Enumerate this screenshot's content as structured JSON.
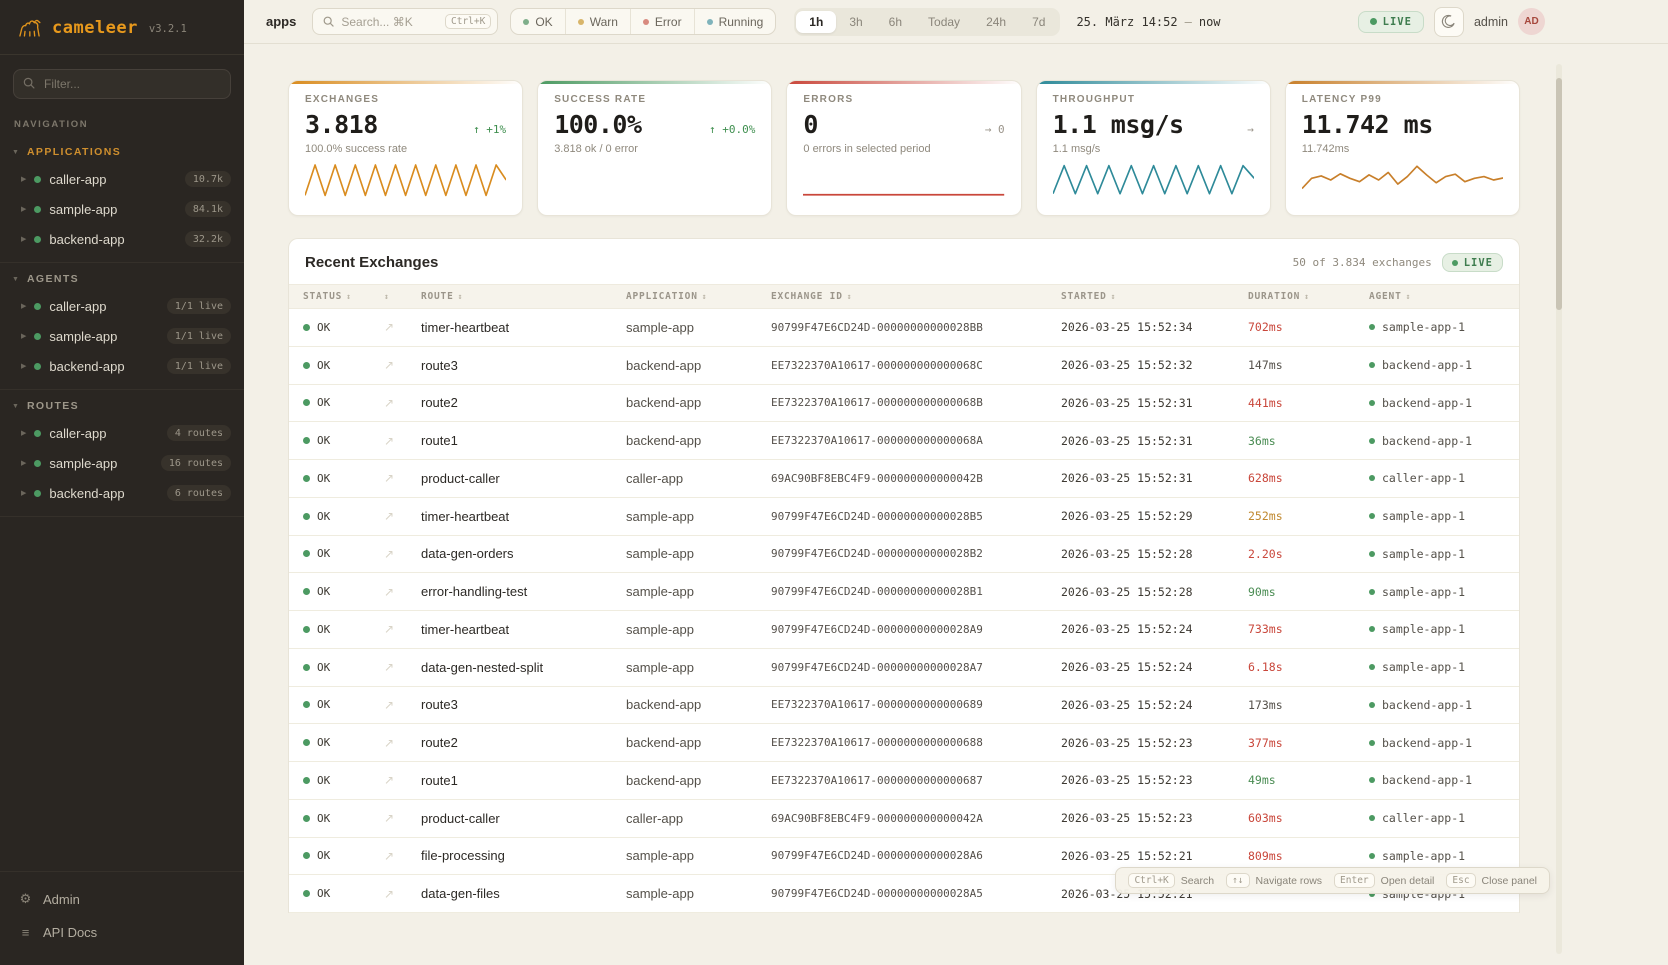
{
  "colors": {
    "accent": "#e0941c",
    "green": "#4c9a62",
    "red": "#c9473b",
    "amber": "#c0882f",
    "teal": "#2e8a99",
    "neutral": "#55514b",
    "delta_green": "#3f8f4f",
    "delta_gray": "#9a948a",
    "chip_ok": "#7fae8a",
    "chip_warn": "#d8b56a",
    "chip_error": "#d88a7f",
    "chip_running": "#7fb3bb"
  },
  "sidebar": {
    "logo": "cameleer",
    "version": "v3.2.1",
    "filter_placeholder": "Filter...",
    "nav_label": "NAVIGATION",
    "sections": [
      {
        "label": "APPLICATIONS",
        "active": true,
        "items": [
          {
            "name": "caller-app",
            "badge": "10.7k"
          },
          {
            "name": "sample-app",
            "badge": "84.1k"
          },
          {
            "name": "backend-app",
            "badge": "32.2k"
          }
        ]
      },
      {
        "label": "AGENTS",
        "active": false,
        "items": [
          {
            "name": "caller-app",
            "badge": "1/1 live"
          },
          {
            "name": "sample-app",
            "badge": "1/1 live"
          },
          {
            "name": "backend-app",
            "badge": "1/1 live"
          }
        ]
      },
      {
        "label": "ROUTES",
        "active": false,
        "items": [
          {
            "name": "caller-app",
            "badge": "4 routes"
          },
          {
            "name": "sample-app",
            "badge": "16 routes"
          },
          {
            "name": "backend-app",
            "badge": "6 routes"
          }
        ]
      }
    ],
    "footer": [
      {
        "icon": "gear",
        "label": "Admin"
      },
      {
        "icon": "list",
        "label": "API Docs"
      }
    ]
  },
  "topbar": {
    "breadcrumb": "apps",
    "search_placeholder": "Search... ⌘K",
    "search_kbd": "Ctrl+K",
    "status_filters": [
      {
        "label": "OK",
        "color": "#7fae8a"
      },
      {
        "label": "Warn",
        "color": "#d8b56a"
      },
      {
        "label": "Error",
        "color": "#d88a7f"
      },
      {
        "label": "Running",
        "color": "#7fb3bb"
      }
    ],
    "ranges": [
      "1h",
      "3h",
      "6h",
      "Today",
      "24h",
      "7d"
    ],
    "active_range": "1h",
    "date_from": "25. März 14:52",
    "date_sep": "—",
    "date_to": "now",
    "live_label": "LIVE",
    "user": "admin",
    "avatar": "AD"
  },
  "cards": [
    {
      "label": "EXCHANGES",
      "value": "3.818",
      "delta": "↑ +1%",
      "delta_color": "#3f8f4f",
      "sub": "100.0% success rate",
      "color": "#d98c1f",
      "spark": {
        "type": "line",
        "values": [
          0.95,
          0.06,
          0.95,
          0.06,
          0.95,
          0.06,
          0.95,
          0.06,
          0.95,
          0.06,
          0.95,
          0.06,
          0.95,
          0.06,
          0.95,
          0.06,
          0.95,
          0.06,
          0.95,
          0.06,
          0.5
        ]
      }
    },
    {
      "label": "SUCCESS RATE",
      "value": "100.0%",
      "delta": "↑ +0.0%",
      "delta_color": "#3f8f4f",
      "sub": "3.818 ok / 0 error",
      "color": "#4c9a62",
      "spark": {
        "type": "none",
        "values": []
      }
    },
    {
      "label": "ERRORS",
      "value": "0",
      "delta": "→ 0",
      "delta_color": "#9a948a",
      "sub": "0 errors in selected period",
      "color": "#c9473b",
      "spark": {
        "type": "line",
        "values": [
          0.93,
          0.93
        ]
      }
    },
    {
      "label": "THROUGHPUT",
      "value": "1.1 msg/s",
      "delta": "→",
      "delta_color": "#9a948a",
      "sub": "1.1 msg/s",
      "color": "#2e8a99",
      "spark": {
        "type": "line",
        "values": [
          0.9,
          0.08,
          0.9,
          0.08,
          0.9,
          0.08,
          0.9,
          0.08,
          0.9,
          0.08,
          0.9,
          0.08,
          0.9,
          0.08,
          0.9,
          0.08,
          0.9,
          0.08,
          0.45
        ]
      }
    },
    {
      "label": "LATENCY P99",
      "value": "11.742 ms",
      "delta": "",
      "delta_color": "#9a948a",
      "sub": "11.742ms",
      "color": "#c87f2a",
      "spark": {
        "type": "line",
        "values": [
          0.75,
          0.45,
          0.38,
          0.5,
          0.32,
          0.45,
          0.55,
          0.35,
          0.5,
          0.28,
          0.62,
          0.4,
          0.1,
          0.35,
          0.58,
          0.4,
          0.33,
          0.55,
          0.45,
          0.4,
          0.5,
          0.44
        ]
      }
    }
  ],
  "table": {
    "title": "Recent Exchanges",
    "summary": "50 of 3.834 exchanges",
    "live_label": "LIVE",
    "columns": [
      "STATUS",
      "",
      "ROUTE",
      "APPLICATION",
      "EXCHANGE ID",
      "STARTED",
      "DURATION",
      "AGENT"
    ],
    "rows": [
      {
        "status": "OK",
        "route": "timer-heartbeat",
        "app": "sample-app",
        "exchange_id": "90799F47E6CD24D-00000000000028BB",
        "started": "2026-03-25 15:52:34",
        "duration": "702ms",
        "duration_color": "red",
        "agent": "sample-app-1"
      },
      {
        "status": "OK",
        "route": "route3",
        "app": "backend-app",
        "exchange_id": "EE7322370A10617-000000000000068C",
        "started": "2026-03-25 15:52:32",
        "duration": "147ms",
        "duration_color": "neutral",
        "agent": "backend-app-1"
      },
      {
        "status": "OK",
        "route": "route2",
        "app": "backend-app",
        "exchange_id": "EE7322370A10617-000000000000068B",
        "started": "2026-03-25 15:52:31",
        "duration": "441ms",
        "duration_color": "red",
        "agent": "backend-app-1"
      },
      {
        "status": "OK",
        "route": "route1",
        "app": "backend-app",
        "exchange_id": "EE7322370A10617-000000000000068A",
        "started": "2026-03-25 15:52:31",
        "duration": "36ms",
        "duration_color": "green",
        "agent": "backend-app-1"
      },
      {
        "status": "OK",
        "route": "product-caller",
        "app": "caller-app",
        "exchange_id": "69AC90BF8EBC4F9-000000000000042B",
        "started": "2026-03-25 15:52:31",
        "duration": "628ms",
        "duration_color": "red",
        "agent": "caller-app-1"
      },
      {
        "status": "OK",
        "route": "timer-heartbeat",
        "app": "sample-app",
        "exchange_id": "90799F47E6CD24D-00000000000028B5",
        "started": "2026-03-25 15:52:29",
        "duration": "252ms",
        "duration_color": "amber",
        "agent": "sample-app-1"
      },
      {
        "status": "OK",
        "route": "data-gen-orders",
        "app": "sample-app",
        "exchange_id": "90799F47E6CD24D-00000000000028B2",
        "started": "2026-03-25 15:52:28",
        "duration": "2.20s",
        "duration_color": "red",
        "agent": "sample-app-1"
      },
      {
        "status": "OK",
        "route": "error-handling-test",
        "app": "sample-app",
        "exchange_id": "90799F47E6CD24D-00000000000028B1",
        "started": "2026-03-25 15:52:28",
        "duration": "90ms",
        "duration_color": "green",
        "agent": "sample-app-1"
      },
      {
        "status": "OK",
        "route": "timer-heartbeat",
        "app": "sample-app",
        "exchange_id": "90799F47E6CD24D-00000000000028A9",
        "started": "2026-03-25 15:52:24",
        "duration": "733ms",
        "duration_color": "red",
        "agent": "sample-app-1"
      },
      {
        "status": "OK",
        "route": "data-gen-nested-split",
        "app": "sample-app",
        "exchange_id": "90799F47E6CD24D-00000000000028A7",
        "started": "2026-03-25 15:52:24",
        "duration": "6.18s",
        "duration_color": "red",
        "agent": "sample-app-1"
      },
      {
        "status": "OK",
        "route": "route3",
        "app": "backend-app",
        "exchange_id": "EE7322370A10617-0000000000000689",
        "started": "2026-03-25 15:52:24",
        "duration": "173ms",
        "duration_color": "neutral",
        "agent": "backend-app-1"
      },
      {
        "status": "OK",
        "route": "route2",
        "app": "backend-app",
        "exchange_id": "EE7322370A10617-0000000000000688",
        "started": "2026-03-25 15:52:23",
        "duration": "377ms",
        "duration_color": "red",
        "agent": "backend-app-1"
      },
      {
        "status": "OK",
        "route": "route1",
        "app": "backend-app",
        "exchange_id": "EE7322370A10617-0000000000000687",
        "started": "2026-03-25 15:52:23",
        "duration": "49ms",
        "duration_color": "green",
        "agent": "backend-app-1"
      },
      {
        "status": "OK",
        "route": "product-caller",
        "app": "caller-app",
        "exchange_id": "69AC90BF8EBC4F9-000000000000042A",
        "started": "2026-03-25 15:52:23",
        "duration": "603ms",
        "duration_color": "red",
        "agent": "caller-app-1"
      },
      {
        "status": "OK",
        "route": "file-processing",
        "app": "sample-app",
        "exchange_id": "90799F47E6CD24D-00000000000028A6",
        "started": "2026-03-25 15:52:21",
        "duration": "809ms",
        "duration_color": "red",
        "agent": "sample-app-1"
      },
      {
        "status": "OK",
        "route": "data-gen-files",
        "app": "sample-app",
        "exchange_id": "90799F47E6CD24D-00000000000028A5",
        "started": "2026-03-25 15:52:21",
        "duration": "",
        "duration_color": "neutral",
        "agent": "sample-app-1"
      }
    ]
  },
  "hints": [
    {
      "key": "Ctrl+K",
      "label": "Search"
    },
    {
      "key": "↑↓",
      "label": "Navigate rows"
    },
    {
      "key": "Enter",
      "label": "Open detail"
    },
    {
      "key": "Esc",
      "label": "Close panel"
    }
  ]
}
